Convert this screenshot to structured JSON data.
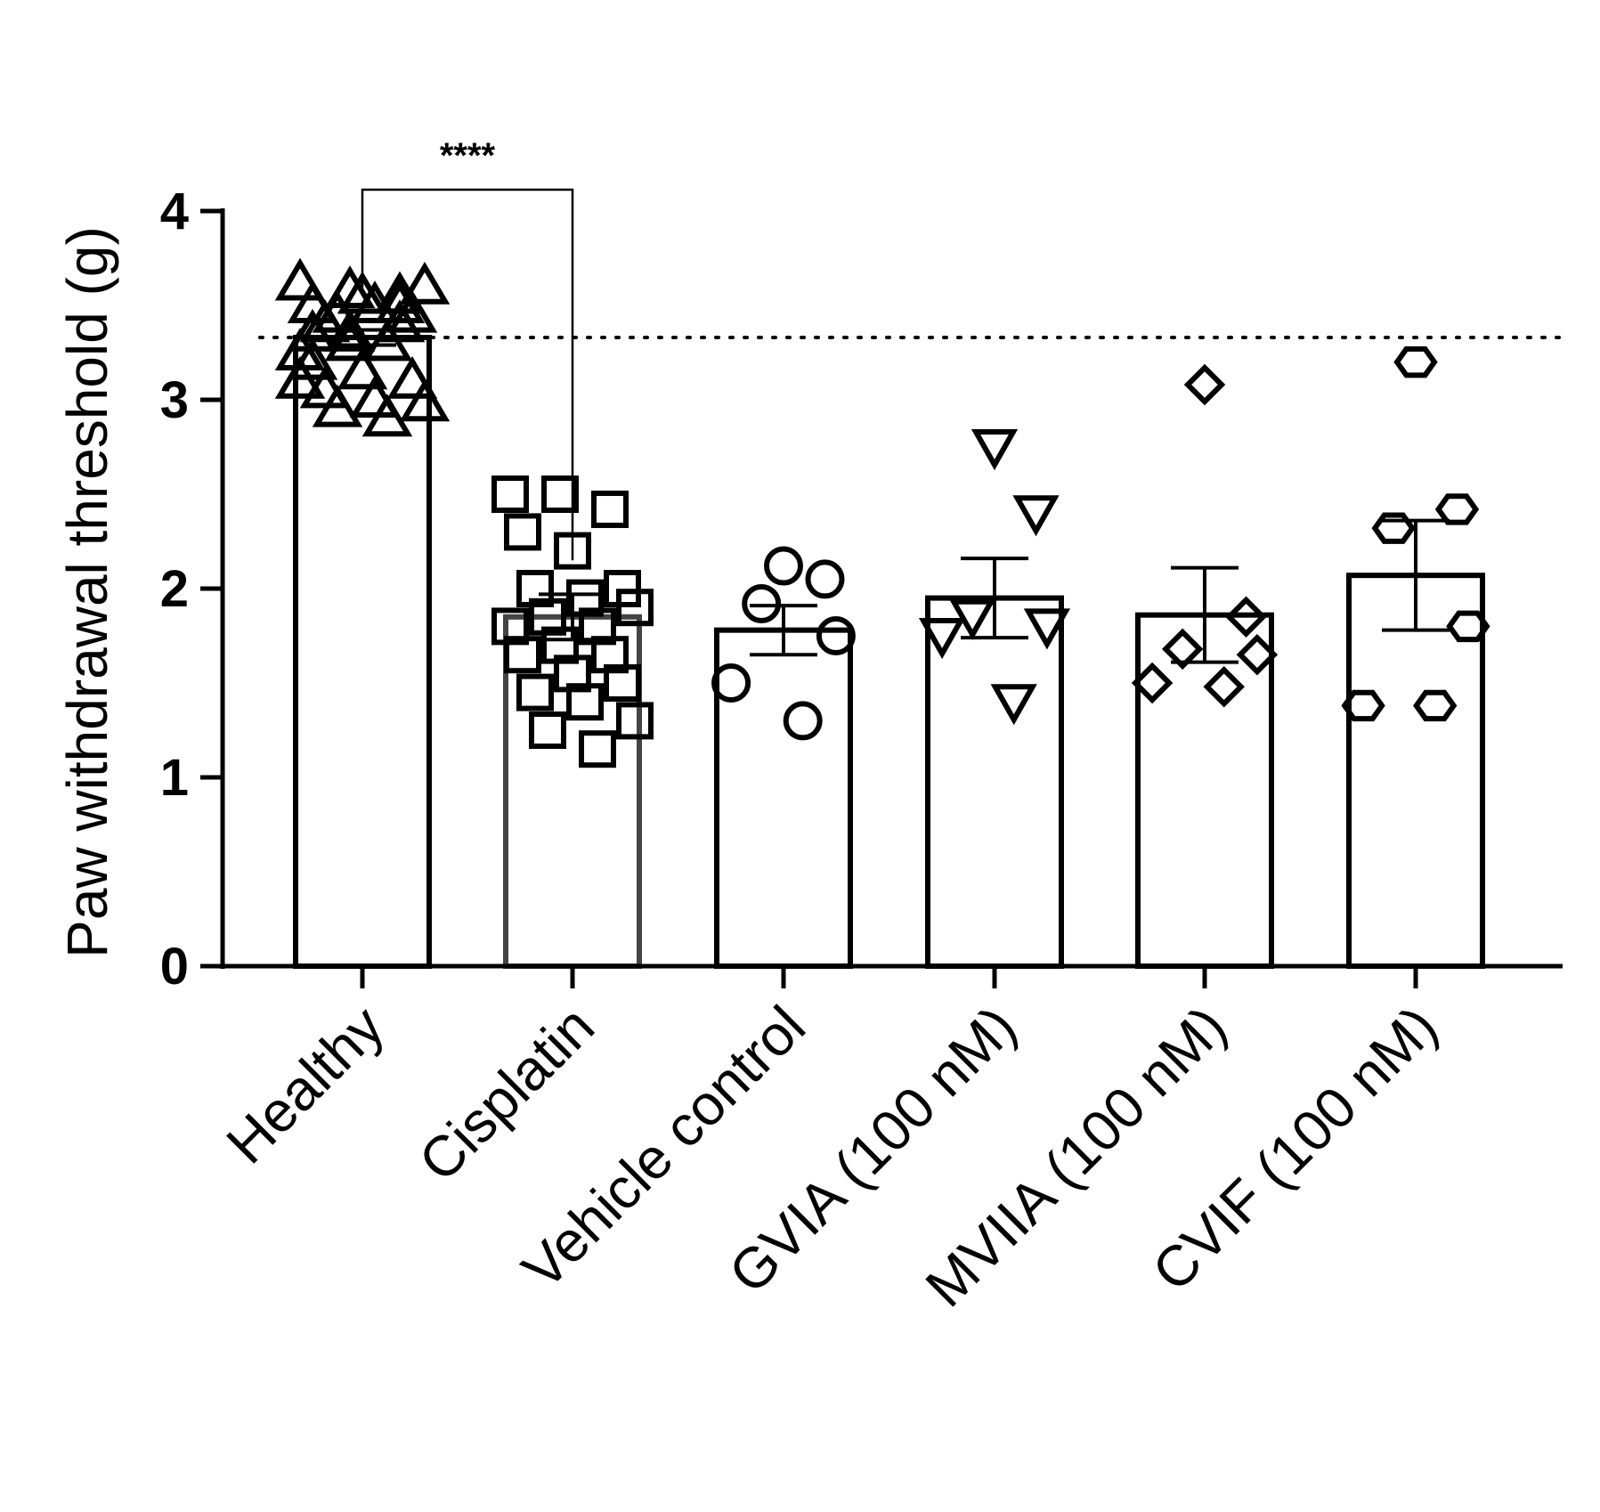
{
  "chart_data": {
    "type": "bar",
    "title": "",
    "xlabel": "",
    "ylabel": "Paw withdrawal threshold (g)",
    "ylim": [
      0,
      4
    ],
    "yticks": [
      "0",
      "1",
      "2",
      "3",
      "4"
    ],
    "grid": false,
    "reference_line": {
      "value": 3.33,
      "style": "dotted"
    },
    "significance": {
      "from": "Healthy",
      "to": "Cisplatin",
      "label": "****"
    },
    "categories": [
      "Healthy",
      "Cisplatin",
      "Vehicle control",
      "GVIA (100 nM)",
      "MVIIA (100 nM)",
      "CVIF (100 nM)"
    ],
    "series": [
      {
        "name": "Healthy",
        "marker": "triangle-up",
        "bar_color": "#000000",
        "mean": 3.33,
        "sem": 0.04,
        "points": [
          3.62,
          3.58,
          3.55,
          3.5,
          3.55,
          3.45,
          3.4,
          3.5,
          3.6,
          3.45,
          3.3,
          3.25,
          3.35,
          3.4,
          3.2,
          3.15,
          3.1,
          3.05,
          3.0,
          2.98,
          2.95,
          2.9,
          3.1,
          3.3,
          3.5,
          3.35
        ]
      },
      {
        "name": "Cisplatin",
        "marker": "square",
        "bar_color": "#444444",
        "mean": 1.85,
        "sem": 0.12,
        "points": [
          2.5,
          2.5,
          2.42,
          2.3,
          2.2,
          2.0,
          2.0,
          1.95,
          1.9,
          1.85,
          1.8,
          1.8,
          1.7,
          1.65,
          1.65,
          1.55,
          1.5,
          1.45,
          1.4,
          1.3,
          1.25,
          1.15
        ]
      },
      {
        "name": "Vehicle control",
        "marker": "circle",
        "bar_color": "#000000",
        "mean": 1.78,
        "sem": 0.13,
        "points": [
          2.12,
          2.05,
          1.92,
          1.75,
          1.5,
          1.3
        ]
      },
      {
        "name": "GVIA (100 nM)",
        "marker": "triangle-down",
        "bar_color": "#000000",
        "mean": 1.95,
        "sem": 0.21,
        "points": [
          2.75,
          2.4,
          1.85,
          1.8,
          1.75,
          1.4
        ]
      },
      {
        "name": "MVIIA (100 nM)",
        "marker": "diamond",
        "bar_color": "#000000",
        "mean": 1.86,
        "sem": 0.25,
        "points": [
          3.08,
          1.85,
          1.68,
          1.65,
          1.5,
          1.48
        ]
      },
      {
        "name": "CVIF (100 nM)",
        "marker": "hexagon",
        "bar_color": "#000000",
        "mean": 2.07,
        "sem": 0.29,
        "points": [
          3.2,
          2.42,
          2.32,
          1.8,
          1.38,
          1.38
        ]
      }
    ]
  }
}
